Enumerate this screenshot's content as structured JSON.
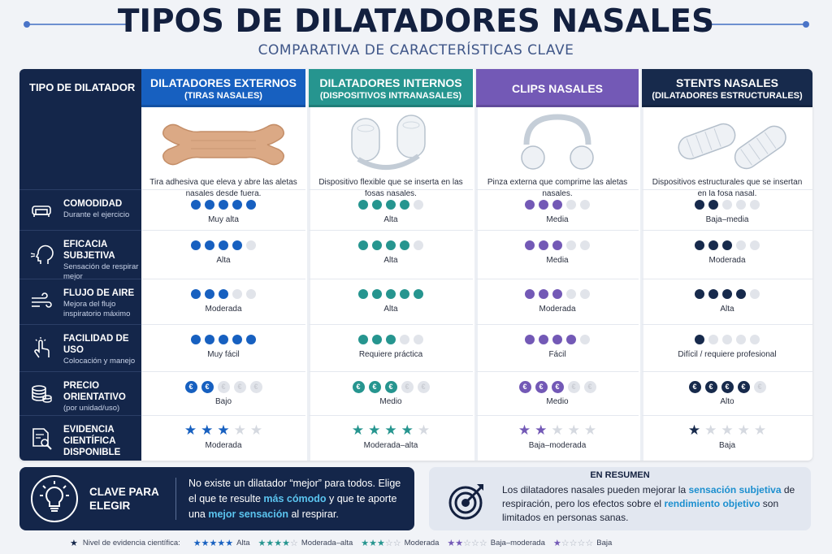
{
  "header": {
    "title": "TIPOS DE DILATADORES NASALES",
    "subtitle": "COMPARATIVA DE CARACTERÍSTICAS CLAVE"
  },
  "table": {
    "corner_label": "TIPO DE DILATADOR",
    "rows": [
      {
        "label": "COMODIDAD",
        "sub": "Durante el ejercicio",
        "icon": "sofa-icon"
      },
      {
        "label": "EFICACIA SUBJETIVA",
        "sub": "Sensación de respirar mejor",
        "icon": "head-breathing-icon"
      },
      {
        "label": "FLUJO DE AIRE",
        "sub": "Mejora del flujo inspiratorio máximo",
        "icon": "wind-icon"
      },
      {
        "label": "FACILIDAD DE USO",
        "sub": "Colocación y manejo",
        "icon": "hand-pointer-icon"
      },
      {
        "label": "PRECIO ORIENTATIVO",
        "sub": "(por unidad/uso)",
        "icon": "coins-icon"
      },
      {
        "label": "EVIDENCIA CIENTÍFICA DISPONIBLE",
        "sub": "",
        "icon": "document-search-icon"
      }
    ],
    "columns": [
      {
        "title": "DILATADORES EXTERNOS",
        "subtitle": "(TIRAS NASALES)",
        "color": "#1760c0",
        "image": "nasal-strip-image",
        "description": "Tira adhesiva que eleva y abre las aletas nasales desde fuera.",
        "comfort": {
          "level": 5,
          "label": "Muy alta"
        },
        "efficacy": {
          "level": 4,
          "label": "Alta"
        },
        "airflow": {
          "level": 3,
          "label": "Moderada"
        },
        "ease": {
          "level": 5,
          "label": "Muy fácil"
        },
        "price": {
          "level": 2,
          "label": "Bajo"
        },
        "evidence": {
          "level": 3,
          "label": "Moderada"
        }
      },
      {
        "title": "DILATADORES INTERNOS",
        "subtitle": "(DISPOSITIVOS INTRANASALES)",
        "color": "#26958f",
        "image": "internal-dilator-image",
        "description": "Dispositivo flexible que se inserta en las fosas nasales.",
        "comfort": {
          "level": 4,
          "label": "Alta"
        },
        "efficacy": {
          "level": 4,
          "label": "Alta"
        },
        "airflow": {
          "level": 5,
          "label": "Alta"
        },
        "ease": {
          "level": 3,
          "label": "Requiere práctica"
        },
        "price": {
          "level": 3,
          "label": "Medio"
        },
        "evidence": {
          "level": 4,
          "label": "Moderada–alta"
        }
      },
      {
        "title": "CLIPS NASALES",
        "subtitle": "",
        "color": "#7359b6",
        "image": "nose-clip-image",
        "description": "Pinza externa que comprime las aletas nasales.",
        "comfort": {
          "level": 3,
          "label": "Media"
        },
        "efficacy": {
          "level": 3,
          "label": "Media"
        },
        "airflow": {
          "level": 3,
          "label": "Moderada"
        },
        "ease": {
          "level": 4,
          "label": "Fácil"
        },
        "price": {
          "level": 3,
          "label": "Medio"
        },
        "evidence": {
          "level": 2,
          "label": "Baja–moderada"
        }
      },
      {
        "title": "STENTS NASALES",
        "subtitle": "(DILATADORES ESTRUCTURALES)",
        "color": "#172a4c",
        "image": "nasal-stent-image",
        "description": "Dispositivos estructurales que se insertan en la fosa nasal.",
        "comfort": {
          "level": 2,
          "label": "Baja–media"
        },
        "efficacy": {
          "level": 3,
          "label": "Moderada"
        },
        "airflow": {
          "level": 4,
          "label": "Alta"
        },
        "ease": {
          "level": 1,
          "label": "Difícil / requiere profesional"
        },
        "price": {
          "level": 4,
          "label": "Alto"
        },
        "evidence": {
          "level": 1,
          "label": "Baja"
        }
      }
    ],
    "dot_empty_color": "#e1e4ea",
    "star_empty_color": "#d5d9e0",
    "coin_symbol": "€"
  },
  "key": {
    "title": "CLAVE PARA ELEGIR",
    "text_1": "No existe un dilatador “mejor” para todos. Elige el que te resulte ",
    "hl_1": "más cómodo",
    "text_2": " y que te aporte una ",
    "hl_2": "mejor sensación",
    "text_3": " al respirar.",
    "icon": "lightbulb-icon"
  },
  "summary": {
    "title": "EN RESUMEN",
    "text_1": "Los dilatadores nasales pueden mejorar la ",
    "hl_1": "sensación subjetiva",
    "text_2": " de respiración, pero los efectos sobre el ",
    "hl_2": "rendimiento objetivo",
    "text_3": " son limitados en personas sanas.",
    "icon": "target-icon"
  },
  "legend": {
    "title": "Nivel de evidencia científica:",
    "items": [
      {
        "stars": 5,
        "label": "Alta",
        "color": "#1760c0"
      },
      {
        "stars": 4,
        "label": "Moderada–alta",
        "color": "#26958f"
      },
      {
        "stars": 3,
        "label": "Moderada",
        "color": "#26958f"
      },
      {
        "stars": 2,
        "label": "Baja–moderada",
        "color": "#7359b6"
      },
      {
        "stars": 1,
        "label": "Baja",
        "color": "#7359b6"
      }
    ]
  }
}
